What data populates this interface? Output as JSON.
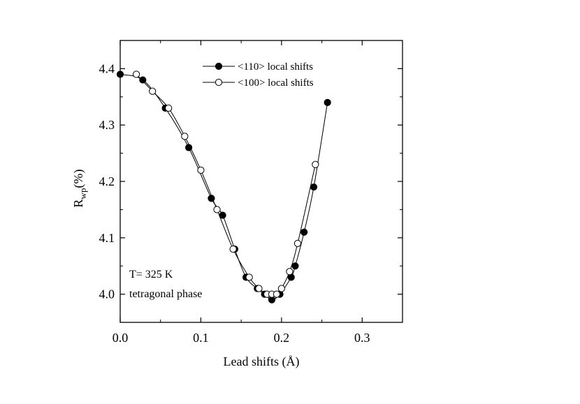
{
  "chart_data": {
    "type": "scatter",
    "xlabel": "Lead shifts (Å)",
    "ylabel_main": "R",
    "ylabel_sub": "wp",
    "ylabel_unit": "(%)",
    "xlim": [
      0.0,
      0.35
    ],
    "ylim": [
      3.95,
      4.45
    ],
    "xticks": [
      0.0,
      0.1,
      0.2,
      0.3
    ],
    "xtick_labels": [
      "0.0",
      "0.1",
      "0.2",
      "0.3"
    ],
    "yticks": [
      4.0,
      4.1,
      4.2,
      4.3,
      4.4
    ],
    "ytick_labels": [
      "4.0",
      "4.1",
      "4.2",
      "4.3",
      "4.4"
    ],
    "grid": false,
    "legend_position": "top-center",
    "series": [
      {
        "name": "<110> local shifts",
        "marker": "filled-circle",
        "color": "#000000",
        "x": [
          0.0,
          0.028,
          0.056,
          0.085,
          0.113,
          0.127,
          0.142,
          0.156,
          0.17,
          0.179,
          0.188,
          0.198,
          0.212,
          0.217,
          0.228,
          0.24,
          0.257
        ],
        "y": [
          4.39,
          4.38,
          4.33,
          4.26,
          4.17,
          4.14,
          4.08,
          4.03,
          4.01,
          4.0,
          3.99,
          4.0,
          4.03,
          4.05,
          4.11,
          4.19,
          4.34
        ]
      },
      {
        "name": "<100> local shifts",
        "marker": "open-circle",
        "color": "#000000",
        "x": [
          0.02,
          0.04,
          0.06,
          0.08,
          0.1,
          0.12,
          0.14,
          0.16,
          0.172,
          0.182,
          0.188,
          0.194,
          0.2,
          0.21,
          0.22,
          0.242
        ],
        "y": [
          4.39,
          4.36,
          4.33,
          4.28,
          4.22,
          4.15,
          4.08,
          4.03,
          4.01,
          4.0,
          4.0,
          4.0,
          4.01,
          4.04,
          4.09,
          4.23
        ]
      }
    ],
    "annotations": [
      "T= 325 K",
      "tetragonal phase"
    ]
  }
}
